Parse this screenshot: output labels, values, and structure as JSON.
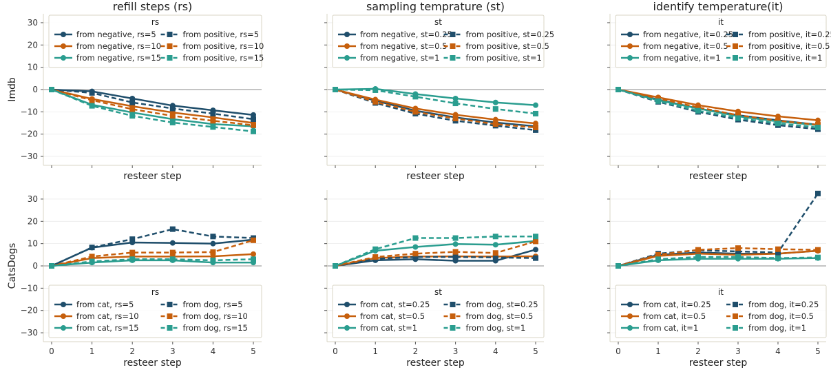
{
  "chart_data": {
    "type": "line",
    "x_label": "resteer step",
    "x_ticks": [
      0,
      1,
      2,
      3,
      4,
      5
    ],
    "ylim": [
      -34,
      34
    ],
    "y_ticks": [
      -30,
      -20,
      -10,
      0,
      10,
      20,
      30
    ],
    "grid": true,
    "colors": {
      "dark": "#1f4e6b",
      "orange": "#c65f0c",
      "teal": "#2a9d8f"
    },
    "row_labels": [
      "Imdb",
      "CatsDogs"
    ],
    "column_titles": [
      "refill steps (rs)",
      "sampling temprature (st)",
      "identify temperature(it)"
    ],
    "panels": [
      {
        "row": 0,
        "col": 0,
        "title": "refill steps (rs)",
        "ylabel": "Imdb",
        "legend": {
          "title": "rs",
          "position": "top"
        },
        "series": [
          {
            "name": "from negative, rs=5",
            "color": "dark",
            "dashed": false,
            "marker": "circle",
            "values": [
              0,
              -0.8,
              -4,
              -7.2,
              -9.3,
              -11.4
            ]
          },
          {
            "name": "from negative, rs=10",
            "color": "orange",
            "dashed": false,
            "marker": "circle",
            "values": [
              0,
              -4.2,
              -7.5,
              -10.3,
              -12.5,
              -15
            ]
          },
          {
            "name": "from negative, rs=15",
            "color": "teal",
            "dashed": false,
            "marker": "circle",
            "values": [
              0,
              -6.8,
              -10.3,
              -13.3,
              -15.5,
              -16.5
            ]
          },
          {
            "name": "from positive, rs=5",
            "color": "dark",
            "dashed": true,
            "marker": "square",
            "values": [
              0,
              -1.5,
              -5.8,
              -8.5,
              -10.8,
              -13.3
            ]
          },
          {
            "name": "from positive, rs=10",
            "color": "orange",
            "dashed": true,
            "marker": "square",
            "values": [
              0,
              -4.8,
              -8.8,
              -11.8,
              -14,
              -16
            ]
          },
          {
            "name": "from positive, rs=15",
            "color": "teal",
            "dashed": true,
            "marker": "square",
            "values": [
              0,
              -7.3,
              -11.8,
              -14.8,
              -16.8,
              -18.8
            ]
          }
        ]
      },
      {
        "row": 0,
        "col": 1,
        "title": "sampling temprature (st)",
        "ylabel": "",
        "legend": {
          "title": "st",
          "position": "top"
        },
        "series": [
          {
            "name": "from negative, st=0.25",
            "color": "dark",
            "dashed": false,
            "marker": "circle",
            "values": [
              0,
              -5,
              -9.5,
              -12.5,
              -14.8,
              -16.5
            ]
          },
          {
            "name": "from negative, st=0.5",
            "color": "orange",
            "dashed": false,
            "marker": "circle",
            "values": [
              0,
              -4.5,
              -8.5,
              -11.3,
              -13.5,
              -15.2
            ]
          },
          {
            "name": "from negative, st=1",
            "color": "teal",
            "dashed": false,
            "marker": "circle",
            "values": [
              0,
              0.3,
              -2,
              -4,
              -5.8,
              -7
            ]
          },
          {
            "name": "from positive, st=0.25",
            "color": "dark",
            "dashed": true,
            "marker": "square",
            "values": [
              0,
              -6,
              -10.8,
              -14,
              -16.2,
              -18.2
            ]
          },
          {
            "name": "from positive, st=0.5",
            "color": "orange",
            "dashed": true,
            "marker": "square",
            "values": [
              0,
              -5.5,
              -10,
              -13,
              -15.5,
              -17
            ]
          },
          {
            "name": "from positive, st=1",
            "color": "teal",
            "dashed": true,
            "marker": "square",
            "values": [
              0,
              -0.3,
              -3.2,
              -6.2,
              -8.7,
              -10.8
            ]
          }
        ]
      },
      {
        "row": 0,
        "col": 2,
        "title": "identify temperature(it)",
        "ylabel": "",
        "legend": {
          "title": "it",
          "position": "top"
        },
        "series": [
          {
            "name": "from negative, it=0.25",
            "color": "dark",
            "dashed": false,
            "marker": "circle",
            "values": [
              0,
              -4.5,
              -8.5,
              -11.5,
              -13.8,
              -15.8
            ]
          },
          {
            "name": "from negative, it=0.5",
            "color": "orange",
            "dashed": false,
            "marker": "circle",
            "values": [
              0,
              -3.5,
              -7,
              -9.8,
              -12,
              -13.8
            ]
          },
          {
            "name": "from negative, it=1",
            "color": "teal",
            "dashed": false,
            "marker": "circle",
            "values": [
              0,
              -4.8,
              -8.5,
              -12,
              -14.3,
              -16
            ]
          },
          {
            "name": "from positive, it=0.25",
            "color": "dark",
            "dashed": true,
            "marker": "square",
            "values": [
              0,
              -5.5,
              -10,
              -13.5,
              -16,
              -17.8
            ]
          },
          {
            "name": "from positive, it=0.5",
            "color": "orange",
            "dashed": true,
            "marker": "square",
            "values": [
              0,
              -4,
              -8,
              -11.5,
              -14,
              -15.8
            ]
          },
          {
            "name": "from positive, it=1",
            "color": "teal",
            "dashed": true,
            "marker": "square",
            "values": [
              0,
              -5.2,
              -9.5,
              -12.8,
              -15.2,
              -17
            ]
          }
        ]
      },
      {
        "row": 1,
        "col": 0,
        "title": "",
        "ylabel": "CatsDogs",
        "legend": {
          "title": "rs",
          "position": "bottom"
        },
        "series": [
          {
            "name": "from cat, rs=5",
            "color": "dark",
            "dashed": false,
            "marker": "circle",
            "values": [
              0,
              8.2,
              10.5,
              10.3,
              10,
              11.8
            ]
          },
          {
            "name": "from cat, rs=10",
            "color": "orange",
            "dashed": false,
            "marker": "circle",
            "values": [
              0,
              3.5,
              4.2,
              4.2,
              4.3,
              5.3
            ]
          },
          {
            "name": "from cat, rs=15",
            "color": "teal",
            "dashed": false,
            "marker": "circle",
            "values": [
              0,
              1.5,
              2.5,
              2.5,
              1.5,
              1.5
            ]
          },
          {
            "name": "from dog, rs=5",
            "color": "dark",
            "dashed": true,
            "marker": "square",
            "values": [
              0,
              8.3,
              12,
              16.5,
              13.2,
              12.5
            ]
          },
          {
            "name": "from dog, rs=10",
            "color": "orange",
            "dashed": true,
            "marker": "square",
            "values": [
              0,
              4.2,
              6,
              6,
              6.2,
              11.5
            ]
          },
          {
            "name": "from dog, rs=15",
            "color": "teal",
            "dashed": true,
            "marker": "square",
            "values": [
              0,
              2,
              3,
              3,
              2.5,
              3
            ]
          }
        ]
      },
      {
        "row": 1,
        "col": 1,
        "title": "",
        "ylabel": "",
        "legend": {
          "title": "st",
          "position": "bottom"
        },
        "series": [
          {
            "name": "from cat, st=0.25",
            "color": "dark",
            "dashed": false,
            "marker": "circle",
            "values": [
              0,
              2.5,
              3,
              2.3,
              2.3,
              7.3
            ]
          },
          {
            "name": "from cat, st=0.5",
            "color": "orange",
            "dashed": false,
            "marker": "circle",
            "values": [
              0,
              3.5,
              4.2,
              4.3,
              4.2,
              4.3
            ]
          },
          {
            "name": "from cat, st=1",
            "color": "teal",
            "dashed": false,
            "marker": "circle",
            "values": [
              0,
              6.8,
              8.5,
              9.8,
              9.5,
              11.2
            ]
          },
          {
            "name": "from dog, st=0.25",
            "color": "dark",
            "dashed": true,
            "marker": "square",
            "values": [
              0,
              3.2,
              4,
              4,
              3.8,
              3.5
            ]
          },
          {
            "name": "from dog, st=0.5",
            "color": "orange",
            "dashed": true,
            "marker": "square",
            "values": [
              0,
              4,
              5.5,
              6.3,
              5.8,
              11
            ]
          },
          {
            "name": "from dog, st=1",
            "color": "teal",
            "dashed": true,
            "marker": "square",
            "values": [
              0,
              7.5,
              12.5,
              12.5,
              13.2,
              13.2
            ]
          }
        ]
      },
      {
        "row": 1,
        "col": 2,
        "title": "",
        "ylabel": "",
        "legend": {
          "title": "it",
          "position": "bottom"
        },
        "series": [
          {
            "name": "from cat, it=0.25",
            "color": "dark",
            "dashed": false,
            "marker": "circle",
            "values": [
              0,
              5,
              6,
              5.5,
              5.5,
              6.8
            ]
          },
          {
            "name": "from cat, it=0.5",
            "color": "orange",
            "dashed": false,
            "marker": "circle",
            "values": [
              0,
              4.5,
              5.5,
              5,
              5.5,
              6.8
            ]
          },
          {
            "name": "from cat, it=1",
            "color": "teal",
            "dashed": false,
            "marker": "circle",
            "values": [
              0,
              2.5,
              3.2,
              3.2,
              3.2,
              3.5
            ]
          },
          {
            "name": "from dog, it=0.25",
            "color": "dark",
            "dashed": true,
            "marker": "square",
            "values": [
              0,
              5.5,
              7,
              6.5,
              6,
              32.5
            ]
          },
          {
            "name": "from dog, it=0.5",
            "color": "orange",
            "dashed": true,
            "marker": "square",
            "values": [
              0,
              5,
              7.2,
              8,
              7.5,
              7.2
            ]
          },
          {
            "name": "from dog, it=1",
            "color": "teal",
            "dashed": true,
            "marker": "square",
            "values": [
              0,
              3,
              4,
              4,
              3.5,
              3.8
            ]
          }
        ]
      }
    ]
  }
}
